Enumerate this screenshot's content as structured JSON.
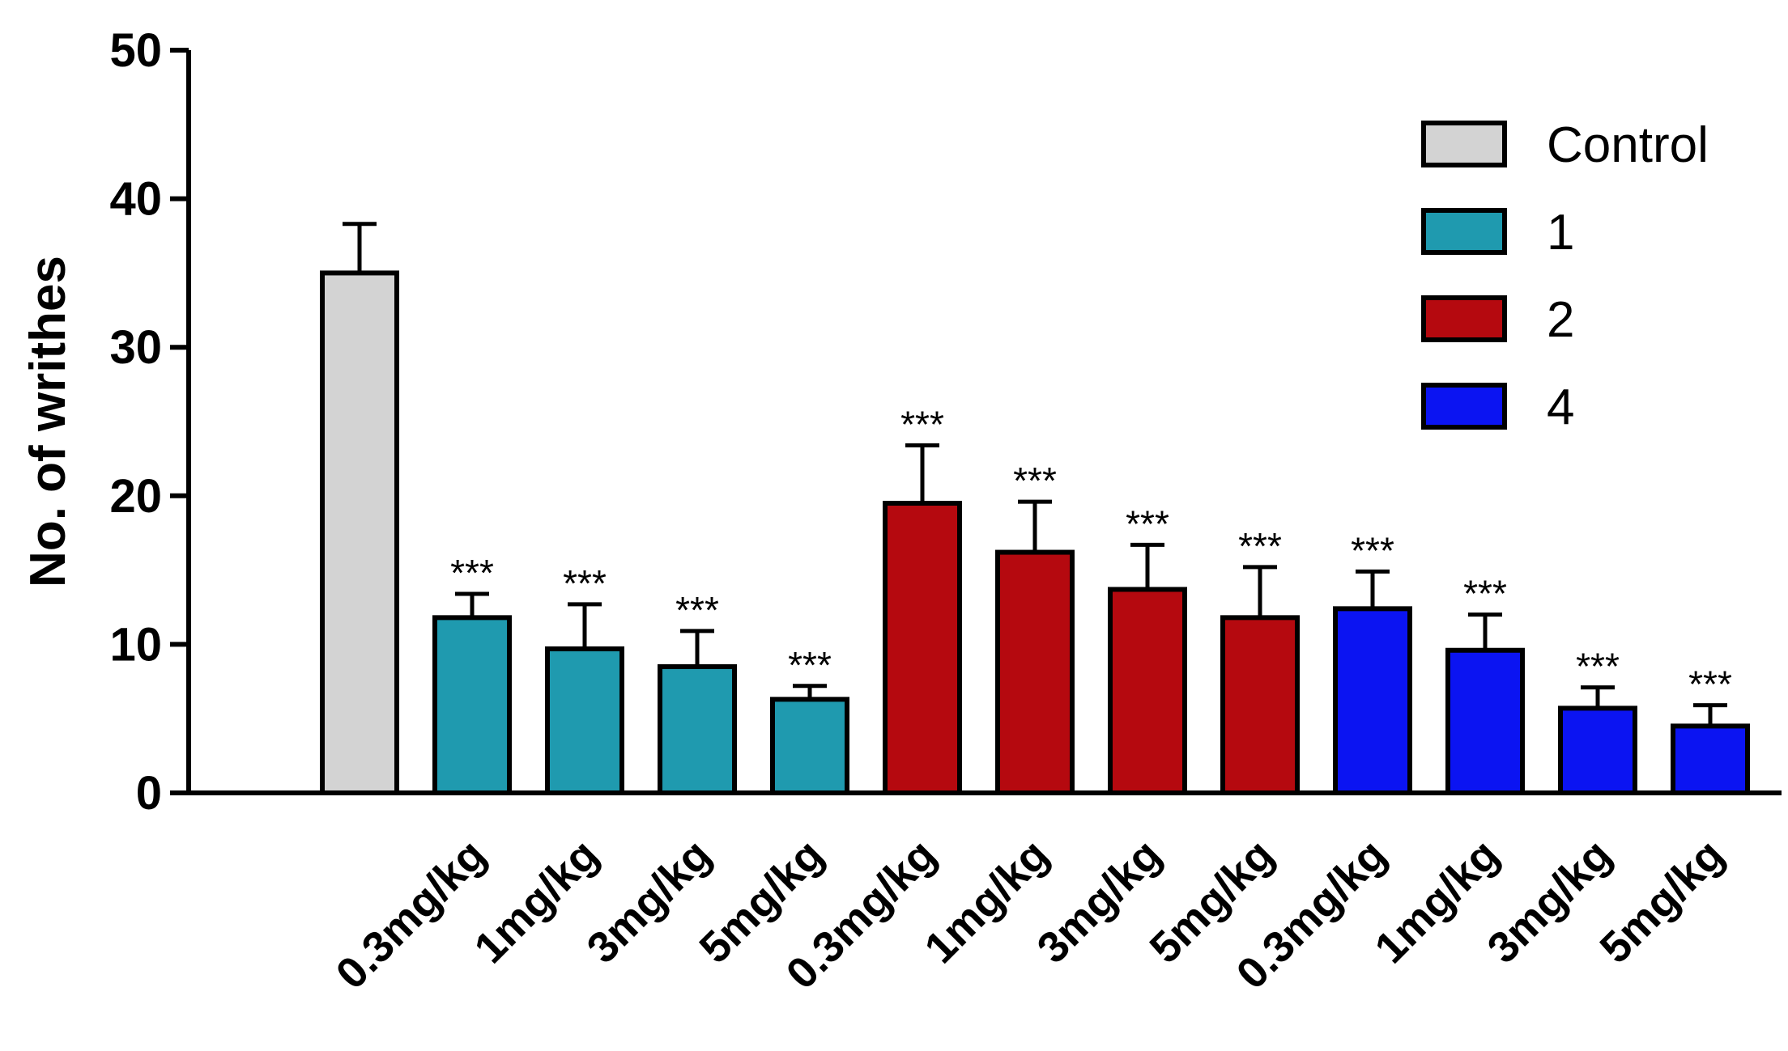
{
  "chart_data": {
    "type": "bar",
    "title": "",
    "xlabel": "",
    "ylabel": "No. of writhes",
    "ylim": [
      0,
      50
    ],
    "yticks": [
      0,
      10,
      20,
      30,
      40,
      50
    ],
    "grid": false,
    "legend_position": "top-right",
    "series": [
      {
        "name": "Control",
        "color": "#d3d3d3"
      },
      {
        "name": "1",
        "color": "#1f9aaf"
      },
      {
        "name": "2",
        "color": "#b5090f"
      },
      {
        "name": "4",
        "color": "#0b14f2"
      }
    ],
    "bars": [
      {
        "series": "Control",
        "category": "",
        "value": 35.0,
        "error": 3.3,
        "sig": ""
      },
      {
        "series": "1",
        "category": "0.3mg/kg",
        "value": 11.8,
        "error": 1.6,
        "sig": "***"
      },
      {
        "series": "1",
        "category": "1mg/kg",
        "value": 9.7,
        "error": 3.0,
        "sig": "***"
      },
      {
        "series": "1",
        "category": "3mg/kg",
        "value": 8.5,
        "error": 2.4,
        "sig": "***"
      },
      {
        "series": "1",
        "category": "5mg/kg",
        "value": 6.3,
        "error": 0.9,
        "sig": "***"
      },
      {
        "series": "2",
        "category": "0.3mg/kg",
        "value": 19.5,
        "error": 3.9,
        "sig": "***"
      },
      {
        "series": "2",
        "category": "1mg/kg",
        "value": 16.2,
        "error": 3.4,
        "sig": "***"
      },
      {
        "series": "2",
        "category": "3mg/kg",
        "value": 13.7,
        "error": 3.0,
        "sig": "***"
      },
      {
        "series": "2",
        "category": "5mg/kg",
        "value": 11.8,
        "error": 3.4,
        "sig": "***"
      },
      {
        "series": "4",
        "category": "0.3mg/kg",
        "value": 12.4,
        "error": 2.5,
        "sig": "***"
      },
      {
        "series": "4",
        "category": "1mg/kg",
        "value": 9.6,
        "error": 2.4,
        "sig": "***"
      },
      {
        "series": "4",
        "category": "3mg/kg",
        "value": 5.7,
        "error": 1.4,
        "sig": "***"
      },
      {
        "series": "4",
        "category": "5mg/kg",
        "value": 4.5,
        "error": 1.4,
        "sig": "***"
      }
    ]
  }
}
